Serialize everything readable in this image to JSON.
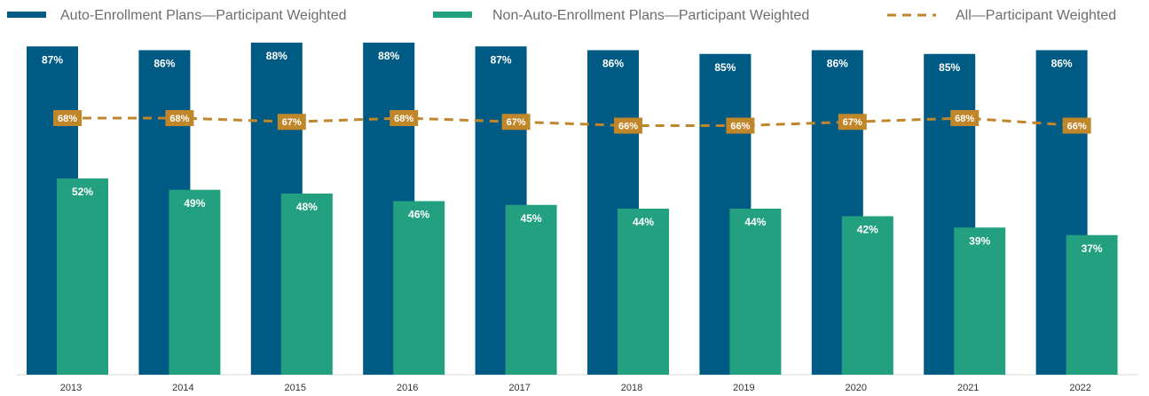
{
  "chart_data": {
    "type": "bar",
    "categories": [
      "2013",
      "2014",
      "2015",
      "2016",
      "2017",
      "2018",
      "2019",
      "2020",
      "2021",
      "2022"
    ],
    "series": [
      {
        "name": "Auto-Enrollment Plans—Participant Weighted",
        "type": "bar",
        "color": "#005b84",
        "values": [
          87,
          86,
          88,
          88,
          87,
          86,
          85,
          86,
          85,
          86
        ],
        "value_labels": [
          "87%",
          "86%",
          "88%",
          "88%",
          "87%",
          "86%",
          "85%",
          "86%",
          "85%",
          "86%"
        ]
      },
      {
        "name": "Non-Auto-Enrollment Plans—Participant Weighted",
        "type": "bar",
        "color": "#22a07f",
        "values": [
          52,
          49,
          48,
          46,
          45,
          44,
          44,
          42,
          39,
          37
        ],
        "value_labels": [
          "52%",
          "49%",
          "48%",
          "46%",
          "45%",
          "44%",
          "44%",
          "42%",
          "39%",
          "37%"
        ]
      },
      {
        "name": "All—Participant Weighted",
        "type": "line",
        "color": "#c0862a",
        "values": [
          68,
          68,
          67,
          68,
          67,
          66,
          66,
          67,
          68,
          66
        ],
        "value_labels": [
          "68%",
          "68%",
          "67%",
          "68%",
          "67%",
          "66%",
          "66%",
          "67%",
          "68%",
          "66%"
        ]
      }
    ],
    "ylim": [
      0,
      100
    ],
    "legend": "top"
  }
}
